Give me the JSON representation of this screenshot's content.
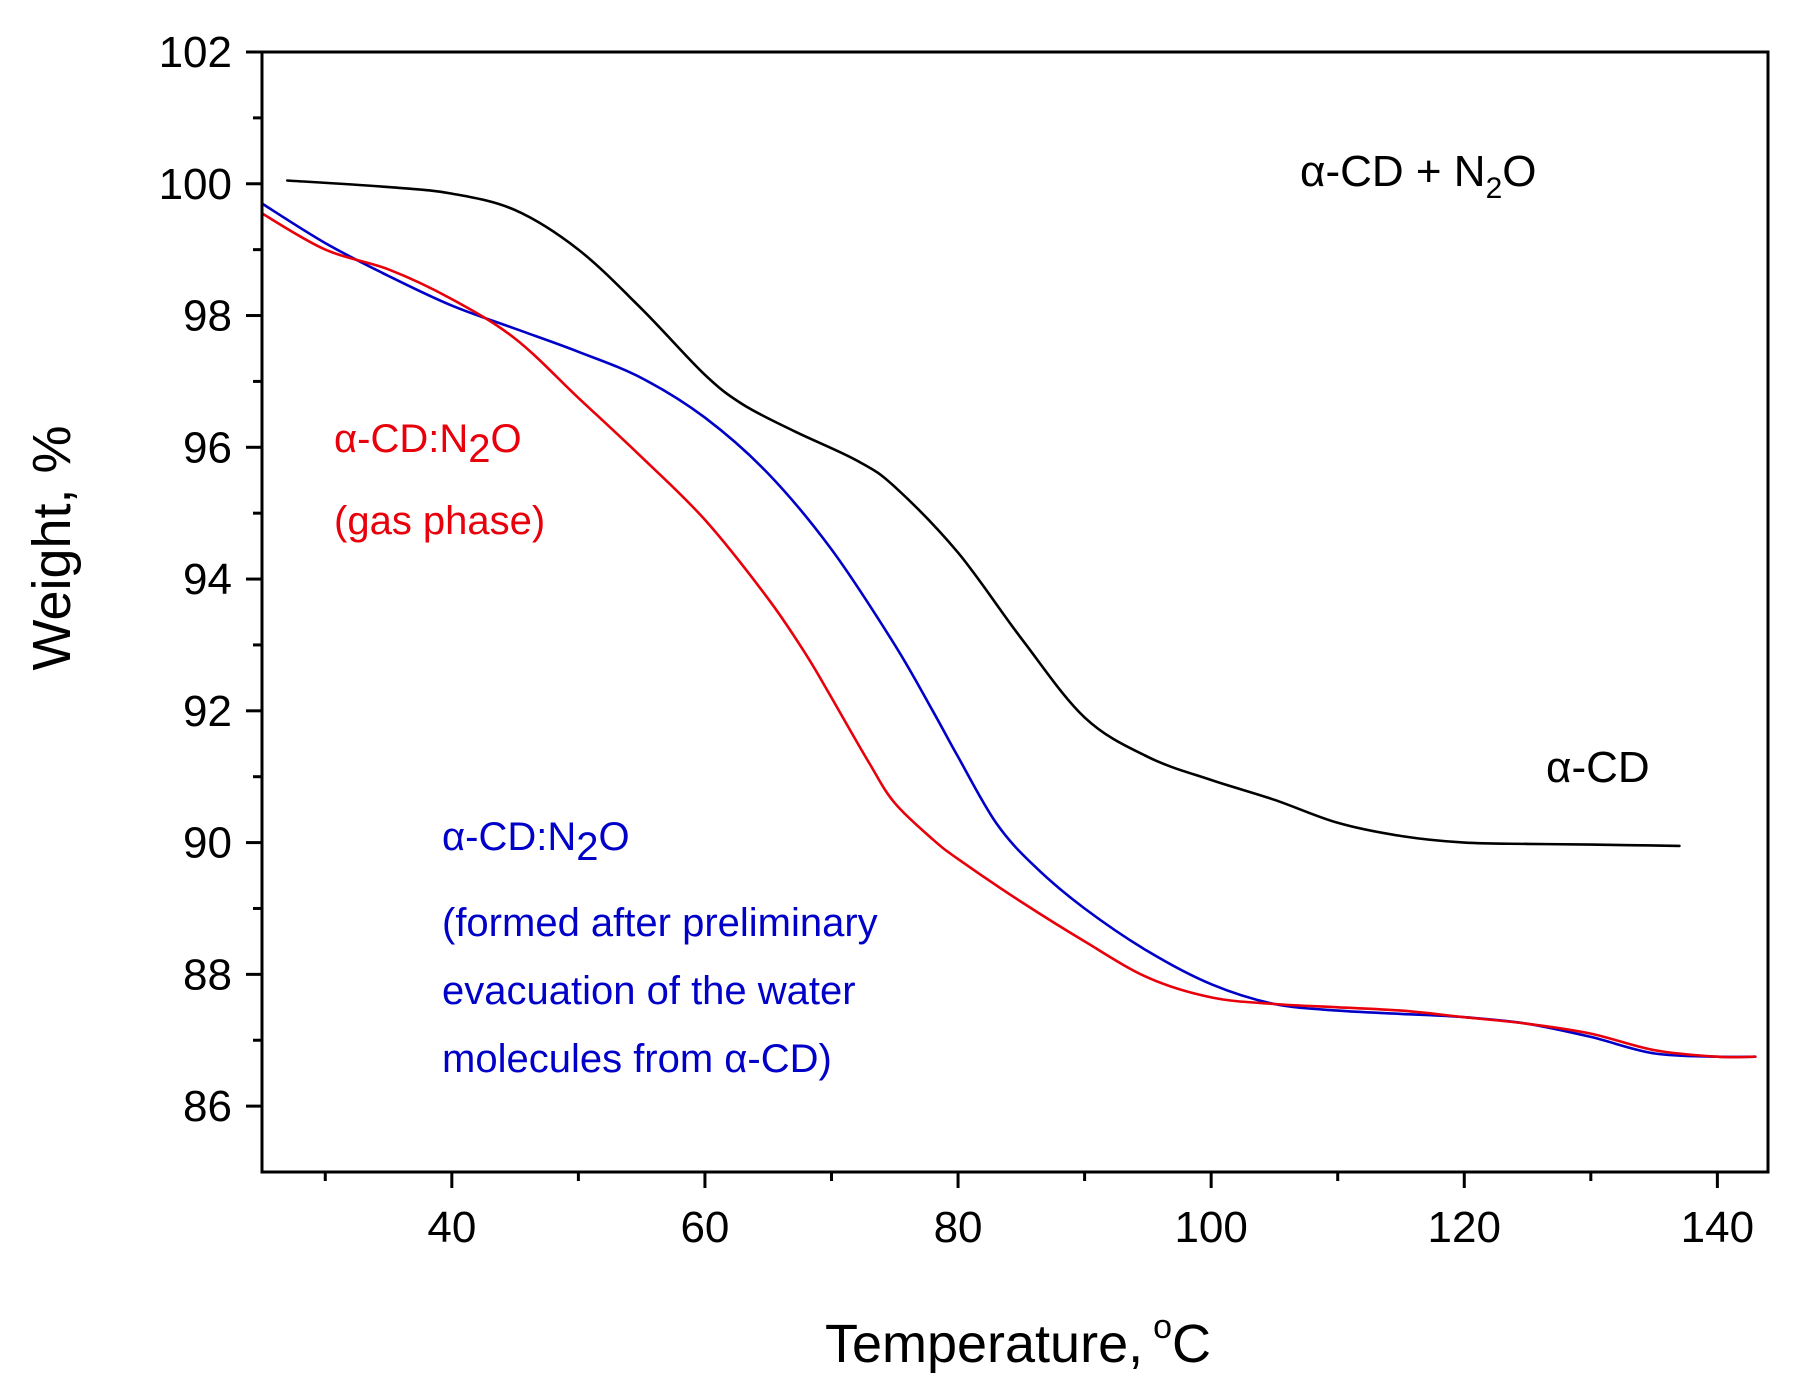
{
  "chart_data": {
    "type": "line",
    "title": "",
    "xlabel": "Temperature, °C",
    "xlabel_main": "Temperature,",
    "xlabel_unit_sup": "o",
    "xlabel_unit": "C",
    "ylabel": "Weight, %",
    "xlim": [
      25,
      144
    ],
    "ylim": [
      85,
      102
    ],
    "xticks": [
      40,
      60,
      80,
      100,
      120,
      140
    ],
    "xtick_labels": [
      "40",
      "60",
      "80",
      "100",
      "120",
      "140"
    ],
    "yticks": [
      86,
      88,
      90,
      92,
      94,
      96,
      98,
      100,
      102
    ],
    "ytick_labels": [
      "86",
      "88",
      "90",
      "92",
      "94",
      "96",
      "98",
      "100",
      "102"
    ],
    "grid": false,
    "series": [
      {
        "name": "α-CD",
        "color": "#000000",
        "x": [
          27,
          35,
          40,
          45,
          50,
          55,
          60,
          63,
          67,
          72,
          75,
          80,
          85,
          90,
          95,
          100,
          105,
          110,
          115,
          120,
          125,
          130,
          137
        ],
        "y": [
          100.05,
          99.95,
          99.85,
          99.6,
          99.0,
          98.1,
          97.1,
          96.65,
          96.25,
          95.8,
          95.4,
          94.4,
          93.1,
          91.9,
          91.3,
          90.95,
          90.65,
          90.3,
          90.1,
          90.0,
          89.98,
          89.97,
          89.95
        ]
      },
      {
        "name": "α-CD:N2O (formed after preliminary evacuation of the water molecules from α-CD)",
        "color": "#0000c8",
        "x": [
          25,
          30,
          35,
          40,
          45,
          50,
          55,
          60,
          65,
          70,
          75,
          78,
          80,
          83,
          86,
          90,
          95,
          100,
          105,
          110,
          115,
          120,
          125,
          130,
          135,
          140,
          143
        ],
        "y": [
          99.7,
          99.1,
          98.6,
          98.15,
          97.8,
          97.45,
          97.05,
          96.45,
          95.6,
          94.45,
          93.0,
          92.0,
          91.3,
          90.3,
          89.65,
          89.0,
          88.35,
          87.85,
          87.55,
          87.45,
          87.4,
          87.35,
          87.25,
          87.05,
          86.8,
          86.75,
          86.75
        ]
      },
      {
        "name": "α-CD:N2O (gas phase)",
        "color": "#e8000b",
        "x": [
          25,
          30,
          35,
          40,
          45,
          50,
          55,
          60,
          65,
          68,
          70,
          73,
          75,
          78,
          80,
          85,
          90,
          95,
          100,
          105,
          110,
          115,
          120,
          125,
          130,
          135,
          140,
          143
        ],
        "y": [
          99.55,
          99.0,
          98.7,
          98.25,
          97.65,
          96.75,
          95.85,
          94.9,
          93.7,
          92.85,
          92.2,
          91.2,
          90.6,
          90.05,
          89.75,
          89.1,
          88.5,
          87.95,
          87.65,
          87.55,
          87.5,
          87.45,
          87.35,
          87.25,
          87.1,
          86.85,
          86.75,
          86.75
        ]
      }
    ],
    "annotations": {
      "top_label_main": "α-CD + N",
      "top_label_sub": "2",
      "top_label_end": "O",
      "black_label": "α-CD",
      "red_line1_main": "α-CD:N",
      "red_line1_sub": "2",
      "red_line1_end": "O",
      "red_line2": "(gas phase)",
      "blue_line1_main": "α-CD:N",
      "blue_line1_sub": "2",
      "blue_line1_end": "O",
      "blue_line2": "(formed after preliminary",
      "blue_line3": "evacuation of the water",
      "blue_line4": "molecules from α-CD)"
    }
  }
}
